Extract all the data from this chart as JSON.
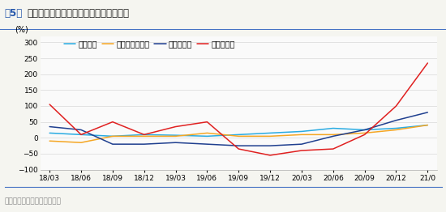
{
  "title_fig": "图5：",
  "title_main": "部分细分工业领域产品产量同比增速较高",
  "ylabel": "(%)",
  "source": "资料来源：安信证券研究中心",
  "ylim": [
    -100,
    320
  ],
  "yticks": [
    -100,
    -50,
    0,
    50,
    100,
    150,
    200,
    250,
    300
  ],
  "x_labels": [
    "18/03",
    "18/06",
    "18/09",
    "18/12",
    "19/03",
    "19/06",
    "19/09",
    "19/12",
    "20/03",
    "20/06",
    "20/09",
    "20/12",
    "21/0"
  ],
  "legend": [
    "集成电路",
    "微型电子计算机",
    "工业机器人",
    "新能源汽车"
  ],
  "colors": [
    "#29ABE2",
    "#F5A623",
    "#1F3F8F",
    "#E02020"
  ],
  "series": {
    "集成电路": [
      15,
      10,
      5,
      10,
      8,
      5,
      10,
      15,
      20,
      30,
      25,
      30,
      40
    ],
    "微型电子计算机": [
      -10,
      -15,
      5,
      5,
      5,
      15,
      5,
      5,
      10,
      10,
      15,
      25,
      40
    ],
    "工业机器人": [
      35,
      25,
      -20,
      -20,
      -15,
      -20,
      -25,
      -25,
      -20,
      5,
      25,
      55,
      80
    ],
    "新能源汽车": [
      105,
      10,
      50,
      10,
      35,
      50,
      -35,
      -55,
      -40,
      -35,
      10,
      100,
      235
    ]
  },
  "background_color": "#F5F5F0",
  "plot_bg_color": "#FAFAFA",
  "grid_color": "#D8D8D8",
  "title_color": "#1a1a1a",
  "title_fontsize": 8.5,
  "label_fontsize": 7,
  "tick_fontsize": 6.5,
  "legend_fontsize": 7,
  "header_line_color": "#4472C4",
  "source_color": "#888888",
  "source_line_color": "#4472C4"
}
